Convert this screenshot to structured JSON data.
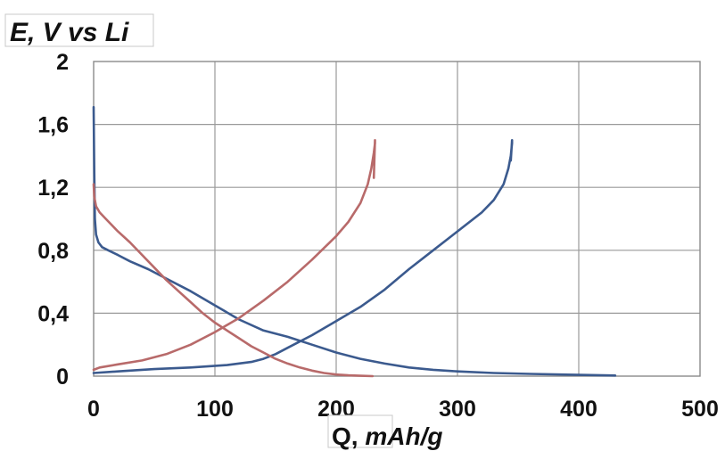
{
  "chart_data": {
    "type": "line",
    "ylabel": "E, V vs Li",
    "xlabel_prefix": "Q, ",
    "xlabel_unit": "mAh/g",
    "xlim": [
      0,
      500
    ],
    "ylim": [
      0,
      2
    ],
    "x_ticks": [
      0,
      100,
      200,
      300,
      400,
      500
    ],
    "x_tick_labels": [
      "0",
      "100",
      "200",
      "300",
      "400",
      "500"
    ],
    "y_ticks": [
      0,
      0.4,
      0.8,
      1.2,
      1.6,
      2
    ],
    "y_tick_labels": [
      "0",
      "0,4",
      "0,8",
      "1,2",
      "1,6",
      "2"
    ],
    "grid": true,
    "colors": {
      "blue": "#3b5a8e",
      "red": "#b86a6a"
    },
    "series": [
      {
        "color": "#3b5a8e",
        "segment": "blue discharge",
        "x": [
          0,
          0.5,
          1,
          2,
          4,
          7,
          12,
          20,
          30,
          45,
          60,
          80,
          100,
          120,
          140,
          160,
          180,
          200,
          220,
          240,
          260,
          280,
          300,
          330,
          360,
          400,
          430
        ],
        "y": [
          1.71,
          1.3,
          1.0,
          0.9,
          0.85,
          0.82,
          0.8,
          0.77,
          0.73,
          0.68,
          0.62,
          0.54,
          0.45,
          0.36,
          0.29,
          0.25,
          0.2,
          0.15,
          0.11,
          0.08,
          0.055,
          0.04,
          0.03,
          0.02,
          0.014,
          0.008,
          0.004
        ]
      },
      {
        "color": "#3b5a8e",
        "segment": "blue charge",
        "x": [
          0,
          20,
          50,
          80,
          110,
          130,
          140,
          150,
          160,
          180,
          200,
          220,
          240,
          260,
          280,
          300,
          320,
          330,
          338,
          342,
          344,
          345,
          345,
          344
        ],
        "y": [
          0.02,
          0.03,
          0.045,
          0.055,
          0.07,
          0.09,
          0.11,
          0.14,
          0.18,
          0.26,
          0.35,
          0.44,
          0.55,
          0.68,
          0.8,
          0.92,
          1.04,
          1.12,
          1.22,
          1.32,
          1.4,
          1.48,
          1.5,
          1.37
        ]
      },
      {
        "color": "#b86a6a",
        "segment": "red discharge",
        "x": [
          0,
          0.5,
          2,
          5,
          10,
          20,
          30,
          40,
          50,
          60,
          70,
          80,
          90,
          100,
          110,
          120,
          130,
          140,
          150,
          160,
          170,
          180,
          190,
          200,
          210,
          220,
          230
        ],
        "y": [
          1.22,
          1.14,
          1.08,
          1.04,
          1.0,
          0.92,
          0.85,
          0.77,
          0.69,
          0.61,
          0.54,
          0.47,
          0.4,
          0.34,
          0.29,
          0.24,
          0.19,
          0.15,
          0.11,
          0.08,
          0.055,
          0.035,
          0.02,
          0.01,
          0.005,
          0.002,
          0.0
        ]
      },
      {
        "color": "#b86a6a",
        "segment": "red charge",
        "x": [
          0,
          5,
          20,
          40,
          60,
          80,
          100,
          120,
          140,
          160,
          180,
          200,
          210,
          220,
          226,
          229,
          231,
          232,
          232,
          231
        ],
        "y": [
          0.04,
          0.055,
          0.075,
          0.1,
          0.14,
          0.2,
          0.28,
          0.37,
          0.48,
          0.6,
          0.74,
          0.89,
          0.98,
          1.1,
          1.22,
          1.32,
          1.42,
          1.48,
          1.5,
          1.26
        ]
      }
    ]
  }
}
